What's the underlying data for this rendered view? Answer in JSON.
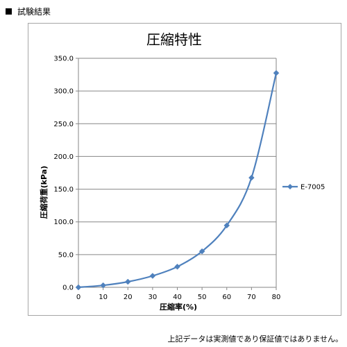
{
  "header": {
    "title": "試験結果"
  },
  "footer": {
    "note": "上記データは実測値であり保証値ではありません。"
  },
  "chart_data": {
    "type": "line",
    "title": "圧縮特性",
    "xlabel": "圧縮率(%)",
    "ylabel": "圧縮荷重(kPa)",
    "xlim": [
      0,
      80
    ],
    "ylim": [
      0,
      350
    ],
    "x_ticks": [
      "0",
      "10",
      "20",
      "30",
      "40",
      "50",
      "60",
      "70",
      "80"
    ],
    "y_ticks": [
      "0.0",
      "50.0",
      "100.0",
      "150.0",
      "200.0",
      "250.0",
      "300.0",
      "350.0"
    ],
    "grid": true,
    "legend_position": "right",
    "series": [
      {
        "name": "E-7005",
        "color": "#4f81bd",
        "x": [
          0,
          10,
          20,
          30,
          40,
          50,
          60,
          70,
          80
        ],
        "y": [
          0.0,
          3.0,
          8.5,
          17.5,
          31.5,
          55.0,
          94.5,
          167.5,
          327.5
        ]
      }
    ]
  }
}
